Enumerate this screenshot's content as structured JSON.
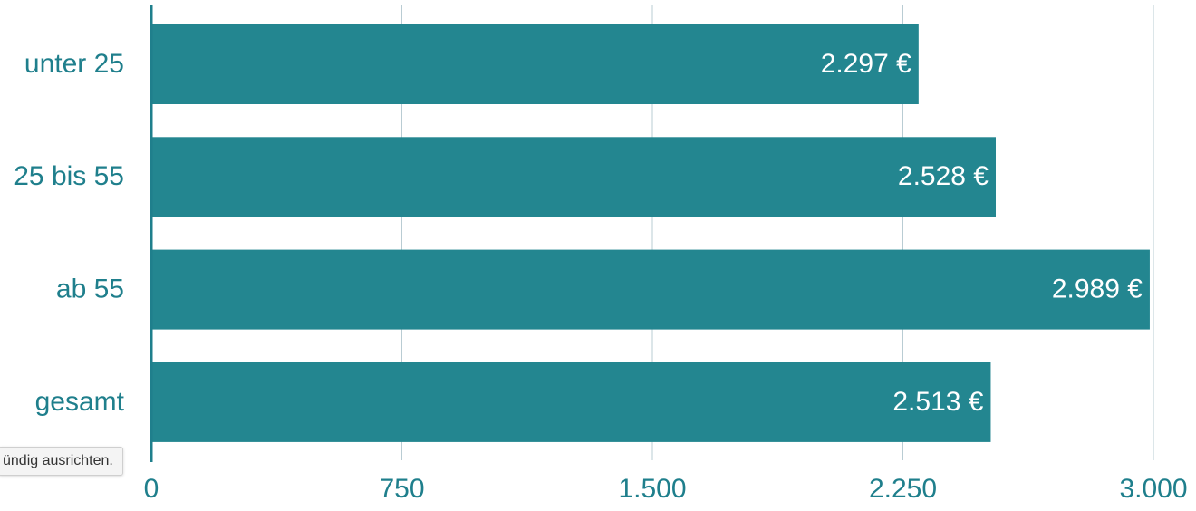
{
  "chart_data": {
    "type": "bar",
    "orientation": "horizontal",
    "categories": [
      "unter 25",
      "25 bis 55",
      "ab 55",
      "gesamt"
    ],
    "values": [
      2297,
      2528,
      2989,
      2513
    ],
    "value_labels": [
      "2.297 €",
      "2.528 €",
      "2.989 €",
      "2.513 €"
    ],
    "color": "#238690",
    "xlim": [
      0,
      3000
    ],
    "xticks": [
      0,
      750,
      {
        "value": 1500,
        "label": "1.500"
      },
      {
        "value": 2250,
        "label": "2.250"
      },
      {
        "value": 3000,
        "label": "3.000"
      }
    ],
    "grid": true
  },
  "tooltip": "ündig ausrichten."
}
